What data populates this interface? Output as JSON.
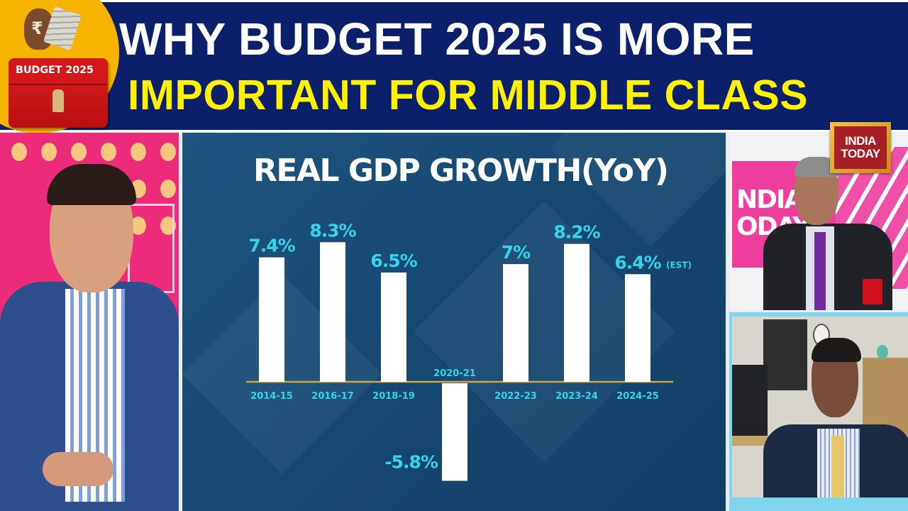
{
  "header": {
    "title_line_1": "WHY BUDGET 2025 IS MORE",
    "title_line_2": "IMPORTANT FOR MIDDLE CLASS",
    "badge_label": "BUDGET 2025",
    "colors": {
      "band": "#0b1f6a",
      "title_line_1": "#ffffff",
      "title_line_2": "#fff200",
      "badge_circle": "#f6b300",
      "briefcase": "#d21818"
    }
  },
  "panels": {
    "left_anchor": {
      "description": "studio anchor in blue suit with striped shirt"
    },
    "right_top": {
      "description": "studio anchor in dark suit with purple tie",
      "backdrop_text": [
        "NDIA",
        "ODAY"
      ]
    },
    "right_bottom": {
      "description": "guest on video call from office"
    }
  },
  "channel_logo": {
    "line_1": "INDIA",
    "line_2": "TODAY",
    "colors": {
      "frame": "#e0a52e",
      "fill": "#a51f24",
      "text": "#ffffff"
    }
  },
  "chart_data": {
    "type": "bar",
    "title": "REAL GDP GROWTH(YoY)",
    "xlabel": "",
    "ylabel": "",
    "unit": "%",
    "categories": [
      "2014-15",
      "2016-17",
      "2018-19",
      "2020-21",
      "2022-23",
      "2023-24",
      "2024-25"
    ],
    "values": [
      7.4,
      8.3,
      6.5,
      -5.8,
      7,
      8.2,
      6.4
    ],
    "value_labels": [
      "7.4%",
      "8.3%",
      "6.5%",
      "-5.8%",
      "7%",
      "8.2%",
      "6.4%"
    ],
    "annotations": [
      {
        "category": "2024-25",
        "text": "(EST)"
      }
    ],
    "ylim": [
      -6,
      8.5
    ],
    "grid": false,
    "legend": "none",
    "colors": {
      "bar": "#ffffff",
      "label": "#35d3ec",
      "baseline": "#c9a84a",
      "title": "#ffffff",
      "background": "#174a74"
    }
  }
}
